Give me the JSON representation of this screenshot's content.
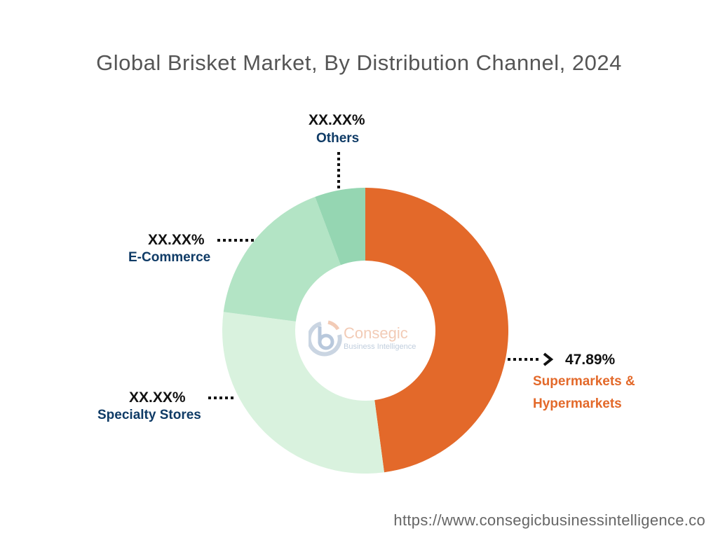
{
  "chart_data": {
    "type": "pie",
    "subtype": "donut",
    "title": "Global Brisket Market, By Distribution Channel, 2024",
    "categories": [
      "Supermarkets & Hypermarkets",
      "Specialty Stores",
      "E-Commerce",
      "Others"
    ],
    "values": [
      47.89,
      29.2,
      17.2,
      5.71
    ],
    "value_labels": [
      "47.89%",
      "XX.XX%",
      "XX.XX%",
      "XX.XX%"
    ],
    "colors": [
      "#e3692a",
      "#d9f2de",
      "#b3e4c5",
      "#95d6b2"
    ]
  },
  "logo": {
    "name": "Consegic",
    "tagline": "Business Intelligence"
  },
  "footer_url": "https://www.consegicbusinessintelligence.co"
}
